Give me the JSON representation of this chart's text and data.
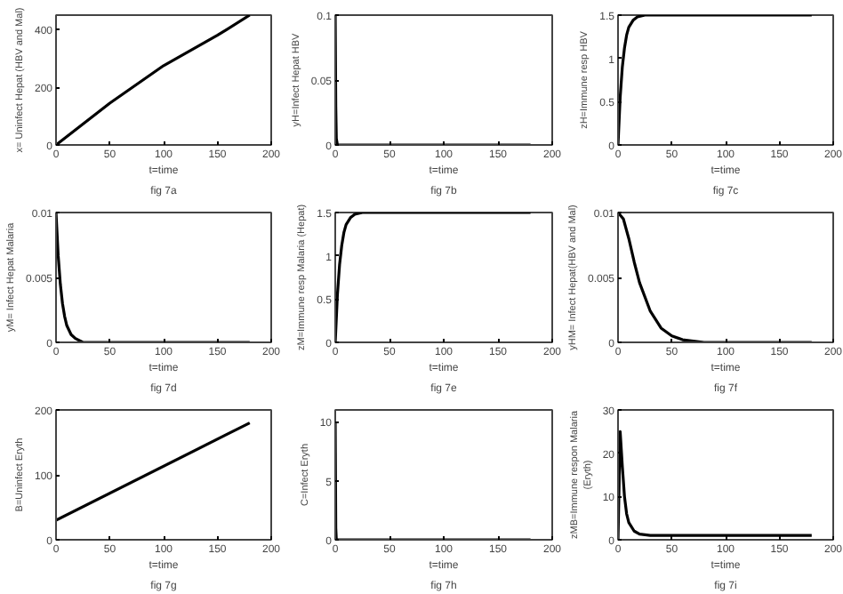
{
  "chart_data": [
    {
      "type": "line",
      "xlabel": "t=time",
      "ylabel": "x= Uninfect Hepat (HBV and Mal)",
      "annotations": [
        "fig 7a"
      ],
      "x": [
        0,
        50,
        100,
        150,
        180
      ],
      "series": [
        {
          "color": "#000000",
          "values": [
            0,
            145,
            275,
            380,
            450
          ]
        }
      ],
      "xlim": [
        0,
        200
      ],
      "xticks": [
        0,
        50,
        100,
        150,
        200
      ],
      "ylim": [
        0,
        450
      ],
      "yticks": [
        0,
        200,
        400
      ]
    },
    {
      "type": "line",
      "xlabel": "t=time",
      "ylabel": "yH=Infect Hepat HBV",
      "annotations": [
        "fig 7b"
      ],
      "x": [
        0,
        0.5,
        1,
        2,
        180
      ],
      "series": [
        {
          "color": "#000000",
          "values": [
            0.1,
            0.03,
            0.005,
            0,
            0
          ]
        }
      ],
      "xlim": [
        0,
        200
      ],
      "xticks": [
        0,
        50,
        100,
        150,
        200
      ],
      "ylim": [
        0,
        0.1
      ],
      "yticks": [
        0,
        0.05,
        0.1
      ]
    },
    {
      "type": "line",
      "xlabel": "t=time",
      "ylabel": "zH=Immune resp HBV",
      "annotations": [
        "fig 7c"
      ],
      "x": [
        0,
        2,
        4,
        6,
        8,
        10,
        14,
        18,
        25,
        180
      ],
      "series": [
        {
          "color": "#000000",
          "values": [
            0,
            0.55,
            0.9,
            1.12,
            1.27,
            1.36,
            1.44,
            1.48,
            1.5,
            1.5
          ]
        }
      ],
      "xlim": [
        0,
        200
      ],
      "xticks": [
        0,
        50,
        100,
        150,
        200
      ],
      "ylim": [
        0,
        1.5
      ],
      "yticks": [
        0,
        0.5,
        1,
        1.5
      ]
    },
    {
      "type": "line",
      "xlabel": "t=time",
      "ylabel": "yM= Infect Hepat Malaria",
      "annotations": [
        "fig 7d"
      ],
      "x": [
        0,
        2,
        4,
        6,
        8,
        10,
        14,
        18,
        25,
        180
      ],
      "series": [
        {
          "color": "#000000",
          "values": [
            0.01,
            0.0067,
            0.0045,
            0.003,
            0.002,
            0.0013,
            0.0006,
            0.0003,
            0,
            0
          ]
        }
      ],
      "xlim": [
        0,
        200
      ],
      "xticks": [
        0,
        50,
        100,
        150,
        200
      ],
      "ylim": [
        0,
        0.01
      ],
      "yticks": [
        0,
        0.005,
        0.01
      ]
    },
    {
      "type": "line",
      "xlabel": "t=time",
      "ylabel": "zM=Immune resp Malaria (Hepat)",
      "annotations": [
        "fig 7e"
      ],
      "x": [
        0,
        2,
        4,
        6,
        8,
        10,
        14,
        18,
        25,
        180
      ],
      "series": [
        {
          "color": "#000000",
          "values": [
            0,
            0.55,
            0.9,
            1.12,
            1.27,
            1.36,
            1.44,
            1.48,
            1.5,
            1.5
          ]
        }
      ],
      "xlim": [
        0,
        200
      ],
      "xticks": [
        0,
        50,
        100,
        150,
        200
      ],
      "ylim": [
        0,
        1.5
      ],
      "yticks": [
        0,
        0.5,
        1,
        1.5
      ]
    },
    {
      "type": "line",
      "xlabel": "t=time",
      "ylabel": "yHM= Infect Hepat(HBV and Mal)",
      "annotations": [
        "fig 7f"
      ],
      "x": [
        0,
        5,
        10,
        15,
        20,
        30,
        40,
        50,
        60,
        80,
        180
      ],
      "series": [
        {
          "color": "#000000",
          "values": [
            0.01,
            0.0095,
            0.008,
            0.0062,
            0.0046,
            0.0024,
            0.0011,
            0.0005,
            0.0002,
            0,
            0
          ]
        }
      ],
      "xlim": [
        0,
        200
      ],
      "xticks": [
        0,
        50,
        100,
        150,
        200
      ],
      "ylim": [
        0,
        0.01
      ],
      "yticks": [
        0,
        0.005,
        0.01
      ]
    },
    {
      "type": "line",
      "xlabel": "t=time",
      "ylabel": "B=Uninfect Eryth",
      "annotations": [
        "fig 7g"
      ],
      "x": [
        0,
        180
      ],
      "series": [
        {
          "color": "#000000",
          "values": [
            30,
            180
          ]
        }
      ],
      "xlim": [
        0,
        200
      ],
      "xticks": [
        0,
        50,
        100,
        150,
        200
      ],
      "ylim": [
        0,
        200
      ],
      "yticks": [
        0,
        100,
        200
      ]
    },
    {
      "type": "line",
      "xlabel": "t=time",
      "ylabel": "C=Infect Eryth",
      "annotations": [
        "fig 7h"
      ],
      "x": [
        0,
        0.5,
        1,
        180
      ],
      "series": [
        {
          "color": "#000000",
          "values": [
            10,
            1,
            0,
            0
          ]
        }
      ],
      "xlim": [
        0,
        200
      ],
      "xticks": [
        0,
        50,
        100,
        150,
        200
      ],
      "ylim": [
        0,
        11
      ],
      "yticks": [
        0,
        5,
        10
      ]
    },
    {
      "type": "line",
      "xlabel": "t=time",
      "ylabel": "zMB=Immune respon Malaria\n(Eryth)",
      "annotations": [
        "fig 7i"
      ],
      "x": [
        0,
        2,
        4,
        6,
        8,
        10,
        15,
        20,
        30,
        180
      ],
      "series": [
        {
          "color": "#000000",
          "values": [
            0,
            25,
            17,
            10,
            6,
            4,
            2,
            1.3,
            1,
            1
          ]
        }
      ],
      "xlim": [
        0,
        200
      ],
      "xticks": [
        0,
        50,
        100,
        150,
        200
      ],
      "ylim": [
        0,
        30
      ],
      "yticks": [
        0,
        10,
        20,
        30
      ]
    }
  ]
}
